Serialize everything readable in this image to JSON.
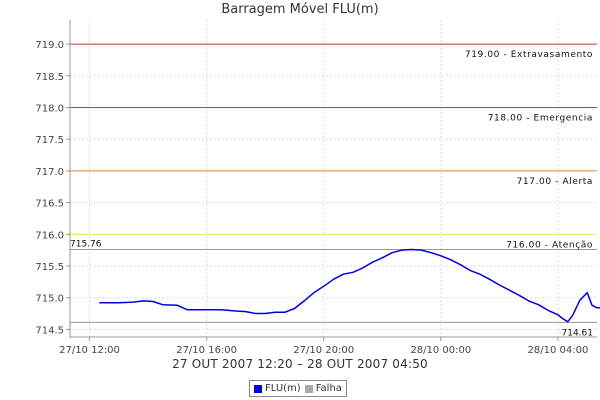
{
  "chart_data": {
    "type": "line",
    "title": "Barragem Móvel FLU(m)",
    "subtitle": "27 OUT 2007 12:20 – 28 OUT 2007 04:50",
    "xlabel": "",
    "ylabel": "",
    "ylim": [
      714.38,
      719.38
    ],
    "xlim": [
      "2007-10-27 11:20",
      "2007-10-28 05:20"
    ],
    "y_ticks": [
      "714.5",
      "715.0",
      "715.5",
      "716.0",
      "716.5",
      "717.0",
      "717.5",
      "718.0",
      "718.5",
      "719.0"
    ],
    "x_ticks": [
      {
        "t": "2007-10-27 12:00",
        "label": "27/10 12:00"
      },
      {
        "t": "2007-10-27 16:00",
        "label": "27/10 16:00"
      },
      {
        "t": "2007-10-27 20:00",
        "label": "27/10 20:00"
      },
      {
        "t": "2007-10-28 00:00",
        "label": "28/10 00:00"
      },
      {
        "t": "2007-10-28 04:00",
        "label": "28/10 04:00"
      }
    ],
    "grid": true,
    "threshold_lines": [
      {
        "value": 719.0,
        "label": "719.00 - Extravasamento",
        "color": "#cc3333"
      },
      {
        "value": 718.0,
        "label": "718.00 - Emergencia",
        "color": "#aa33aa"
      },
      {
        "value": 717.0,
        "label": "717.00 - Alerta",
        "color": "#dd8833"
      },
      {
        "value": 716.0,
        "label": "716.00 - Atenção",
        "color": "#eeee44"
      }
    ],
    "max_marker": {
      "value": 715.76,
      "label": "715.76",
      "color": "#999999"
    },
    "min_marker": {
      "value": 714.61,
      "label": "714.61",
      "color": "#999999"
    },
    "series": [
      {
        "name": "FLU(m)",
        "color": "#0000dd",
        "points": [
          [
            "2007-10-27 12:20",
            714.92
          ],
          [
            "2007-10-27 13:00",
            714.92
          ],
          [
            "2007-10-27 13:30",
            714.93
          ],
          [
            "2007-10-27 13:50",
            714.95
          ],
          [
            "2007-10-27 14:10",
            714.94
          ],
          [
            "2007-10-27 14:30",
            714.89
          ],
          [
            "2007-10-27 15:00",
            714.88
          ],
          [
            "2007-10-27 15:20",
            714.81
          ],
          [
            "2007-10-27 16:00",
            714.81
          ],
          [
            "2007-10-27 16:30",
            714.81
          ],
          [
            "2007-10-27 17:00",
            714.79
          ],
          [
            "2007-10-27 17:20",
            714.78
          ],
          [
            "2007-10-27 17:40",
            714.75
          ],
          [
            "2007-10-27 18:00",
            714.75
          ],
          [
            "2007-10-27 18:20",
            714.77
          ],
          [
            "2007-10-27 18:40",
            714.77
          ],
          [
            "2007-10-27 19:00",
            714.83
          ],
          [
            "2007-10-27 19:20",
            714.95
          ],
          [
            "2007-10-27 19:40",
            715.08
          ],
          [
            "2007-10-27 20:00",
            715.18
          ],
          [
            "2007-10-27 20:20",
            715.29
          ],
          [
            "2007-10-27 20:40",
            715.37
          ],
          [
            "2007-10-27 21:00",
            715.4
          ],
          [
            "2007-10-27 21:20",
            715.47
          ],
          [
            "2007-10-27 21:40",
            715.56
          ],
          [
            "2007-10-27 22:00",
            715.63
          ],
          [
            "2007-10-27 22:20",
            715.71
          ],
          [
            "2007-10-27 22:40",
            715.75
          ],
          [
            "2007-10-27 23:00",
            715.76
          ],
          [
            "2007-10-27 23:20",
            715.75
          ],
          [
            "2007-10-27 23:40",
            715.71
          ],
          [
            "2007-10-28 00:00",
            715.66
          ],
          [
            "2007-10-28 00:20",
            715.6
          ],
          [
            "2007-10-28 00:40",
            715.52
          ],
          [
            "2007-10-28 01:00",
            715.43
          ],
          [
            "2007-10-28 01:20",
            715.37
          ],
          [
            "2007-10-28 01:40",
            715.29
          ],
          [
            "2007-10-28 02:00",
            715.2
          ],
          [
            "2007-10-28 02:20",
            715.12
          ],
          [
            "2007-10-28 02:40",
            715.04
          ],
          [
            "2007-10-28 03:00",
            714.95
          ],
          [
            "2007-10-28 03:20",
            714.89
          ],
          [
            "2007-10-28 03:40",
            714.8
          ],
          [
            "2007-10-28 04:00",
            714.73
          ],
          [
            "2007-10-28 04:10",
            714.67
          ],
          [
            "2007-10-28 04:20",
            714.62
          ],
          [
            "2007-10-28 04:30",
            714.72
          ],
          [
            "2007-10-28 04:45",
            714.96
          ],
          [
            "2007-10-28 05:00",
            715.08
          ],
          [
            "2007-10-28 05:10",
            714.88
          ],
          [
            "2007-10-28 05:20",
            714.84
          ],
          [
            "2007-10-28 05:30",
            714.84
          ],
          [
            "2007-10-28 05:40",
            714.82
          ]
        ]
      }
    ],
    "legend": [
      {
        "label": "FLU(m)",
        "color": "#0000dd"
      },
      {
        "label": "Falha",
        "color": "#aaaaaa"
      }
    ],
    "legend_position": "bottom-center"
  }
}
